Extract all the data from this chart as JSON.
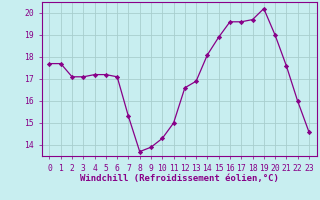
{
  "x": [
    0,
    1,
    2,
    3,
    4,
    5,
    6,
    7,
    8,
    9,
    10,
    11,
    12,
    13,
    14,
    15,
    16,
    17,
    18,
    19,
    20,
    21,
    22,
    23
  ],
  "y": [
    17.7,
    17.7,
    17.1,
    17.1,
    17.2,
    17.2,
    17.1,
    15.3,
    13.7,
    13.9,
    14.3,
    15.0,
    16.6,
    16.9,
    18.1,
    18.9,
    19.6,
    19.6,
    19.7,
    20.2,
    19.0,
    17.6,
    16.0,
    14.6
  ],
  "line_color": "#880088",
  "marker": "D",
  "markersize": 2.2,
  "linewidth": 0.9,
  "xlabel": "Windchill (Refroidissement éolien,°C)",
  "xlabel_fontsize": 6.5,
  "ylim": [
    13.5,
    20.5
  ],
  "yticks": [
    14,
    15,
    16,
    17,
    18,
    19,
    20
  ],
  "xticks": [
    0,
    1,
    2,
    3,
    4,
    5,
    6,
    7,
    8,
    9,
    10,
    11,
    12,
    13,
    14,
    15,
    16,
    17,
    18,
    19,
    20,
    21,
    22,
    23
  ],
  "tick_fontsize": 5.8,
  "bg_color": "#c8eef0",
  "grid_color": "#a8cece",
  "line_purple": "#880088",
  "tick_color": "#880088",
  "label_color": "#880088",
  "spine_color": "#880088"
}
